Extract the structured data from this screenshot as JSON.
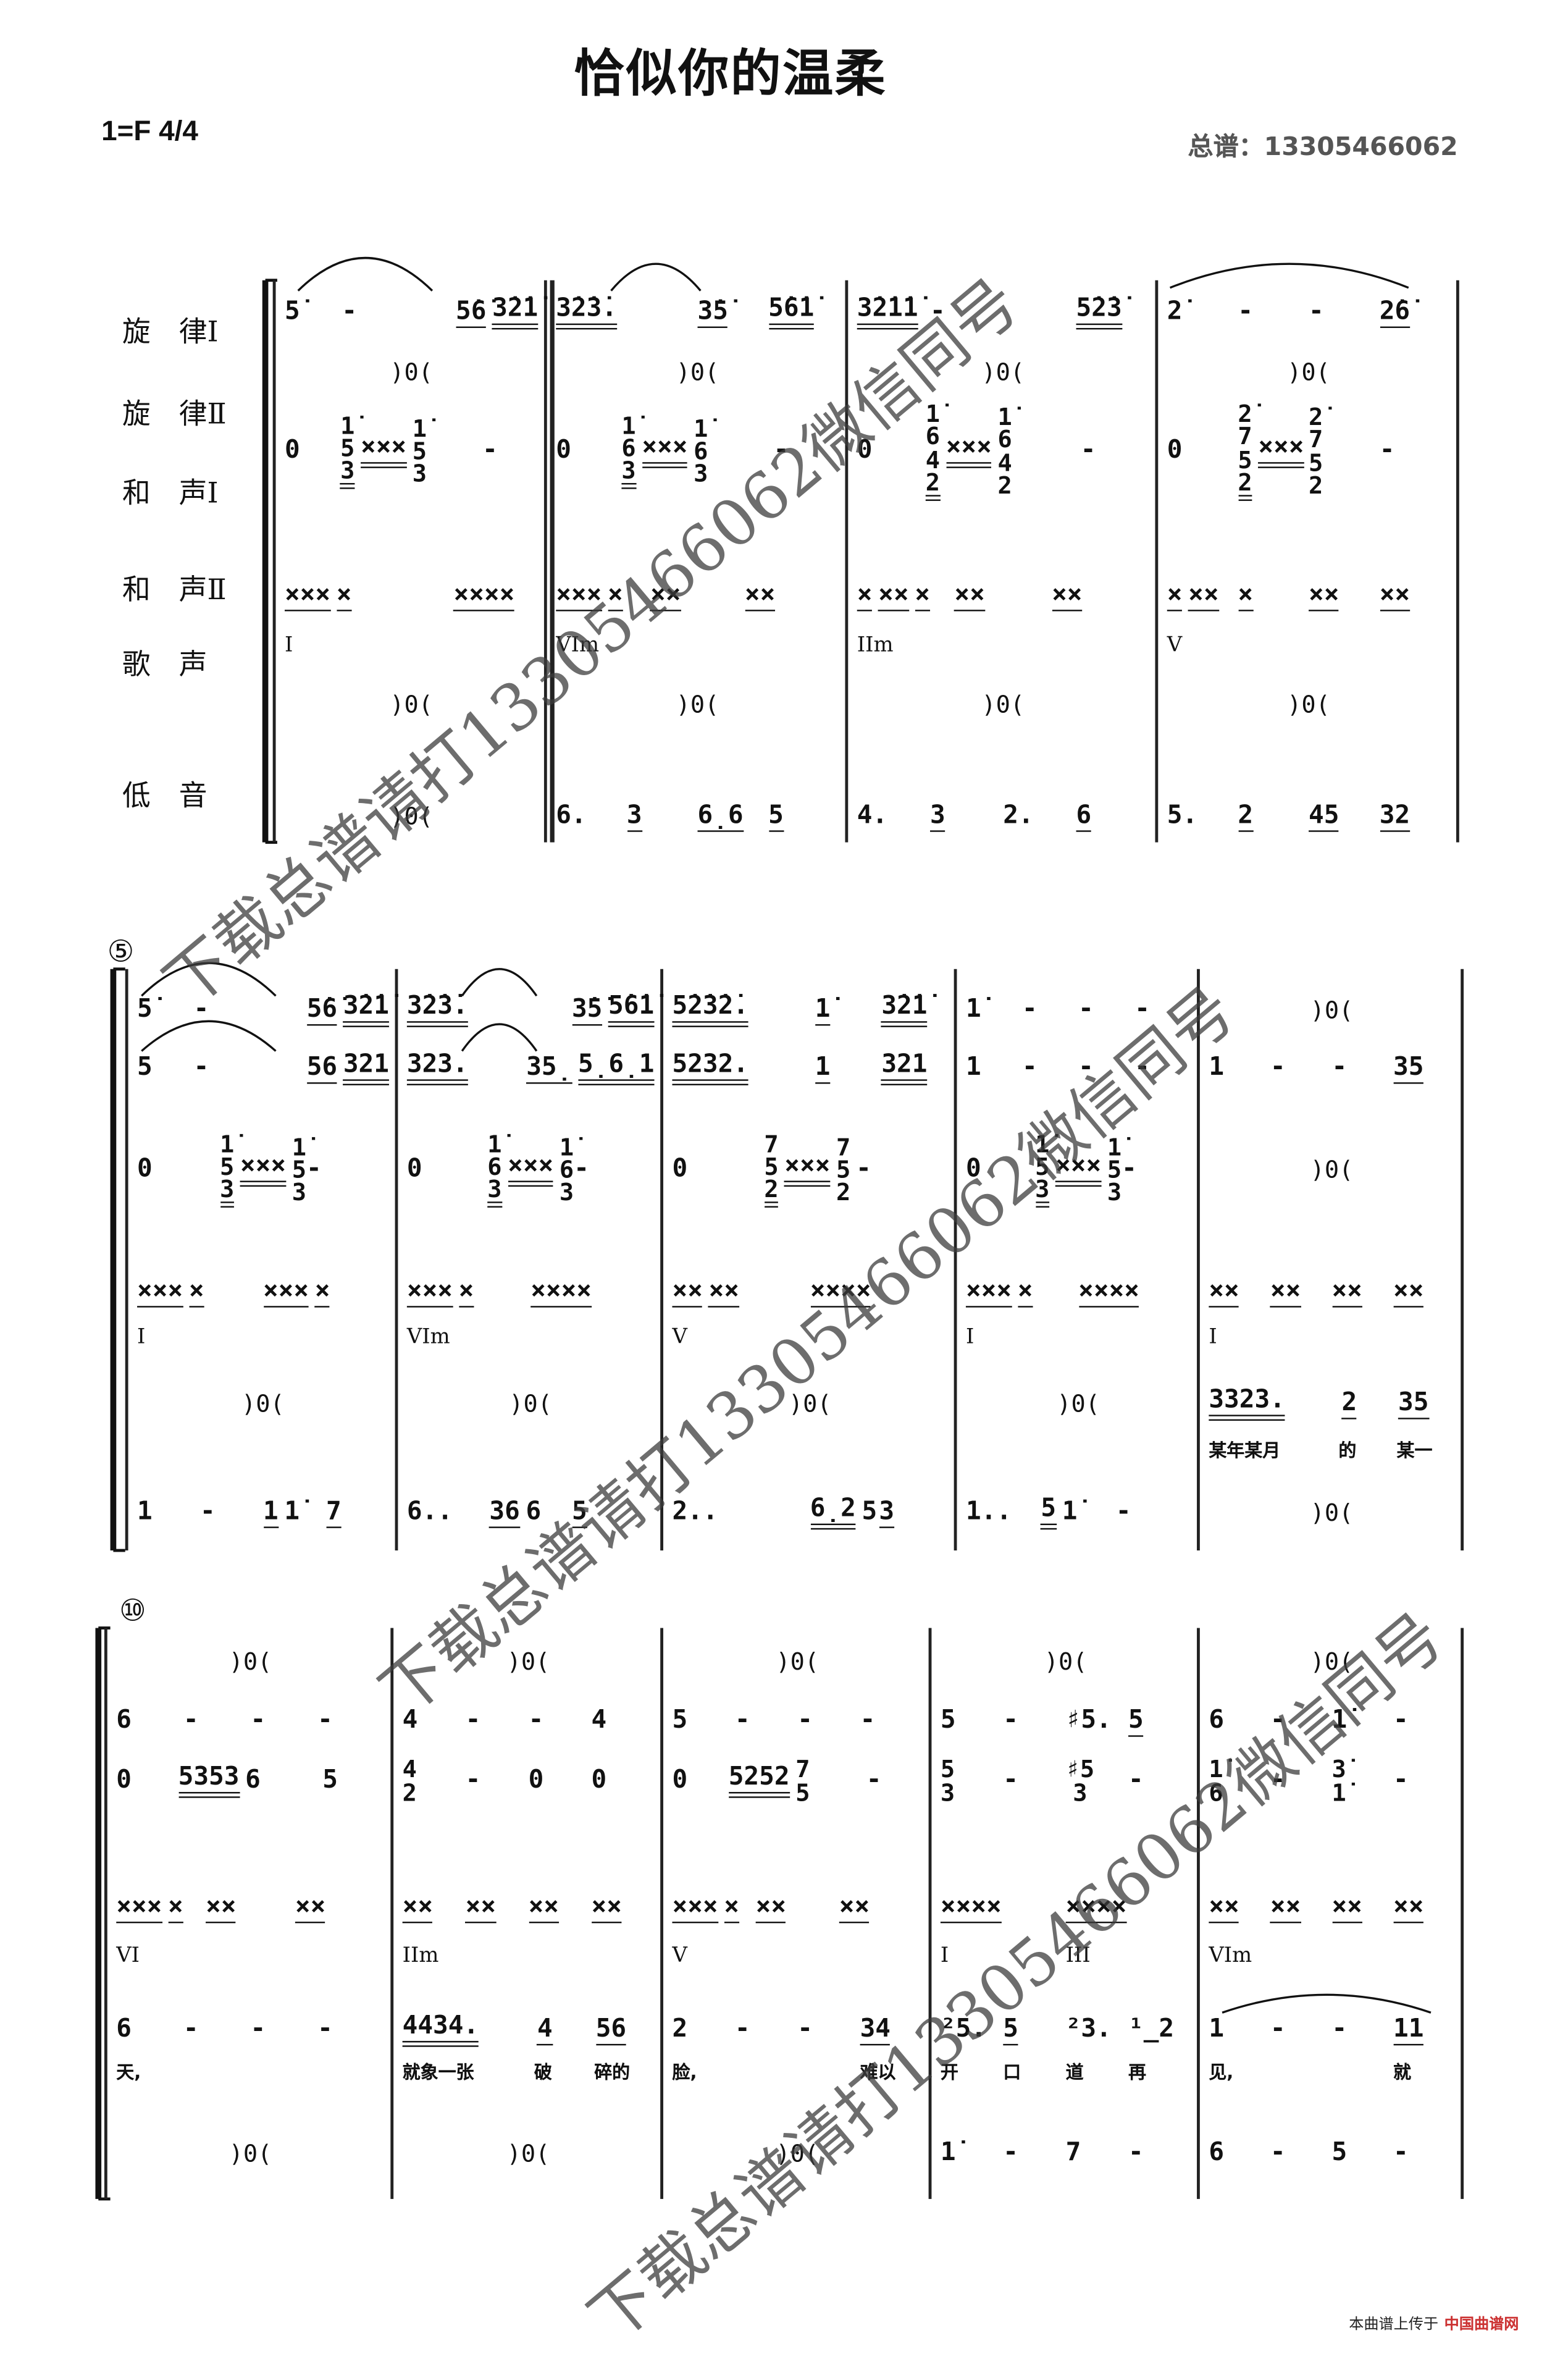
{
  "title": "恰似你的温柔",
  "key_signature": "1=F  4/4",
  "score_label": "总谱：13305466062",
  "part_labels": [
    "旋　律Ⅰ",
    "旋　律Ⅱ",
    "和　声Ⅰ",
    "和　声Ⅱ",
    "歌　声",
    "低　音"
  ],
  "measure_markers": [
    "⑤",
    "⑩"
  ],
  "watermark": "下载总谱请打13305466062微信同号",
  "footer": {
    "text": "本曲谱上传于",
    "logo": "中国曲谱网"
  },
  "systems": [
    {
      "measures": [
        {
          "mel1": [
            "5̇",
            "-",
            "",
            "_5̇6̇ =3̇2̇1̇"
          ],
          "mel2": [
            "",
            ")0(",
            ""
          ],
          "harm1": [
            "0",
            "=1̇/5/3 =××× 1̇/5/3",
            "",
            "-"
          ],
          "harm2": [
            "_××× _×",
            "",
            "_××××"
          ],
          "chord": [
            "I"
          ],
          "voc": [
            "",
            ")0(",
            ""
          ],
          "bass": [
            "",
            ")0(",
            ""
          ]
        },
        {
          "mel1": [
            "=3̇2̇3̇.",
            "",
            "_3̇5̇",
            "=5̇6̇1̇"
          ],
          "mel2": [
            "",
            ")0(",
            ""
          ],
          "harm1": [
            "0",
            "=1̇/6/3 =××× 1̇/6/3",
            "",
            "-"
          ],
          "harm2": [
            "_××× _×",
            "_××",
            "_××"
          ],
          "chord": [
            "VIm"
          ],
          "voc": [
            "",
            ")0(",
            ""
          ],
          "bass": [
            "6.",
            "_3",
            "_6̣6",
            "_5"
          ]
        },
        {
          "mel1": [
            "=3̇2̇1̇1̇",
            "-",
            "",
            "=5̇2̇3̇"
          ],
          "mel2": [
            "",
            ")0(",
            ""
          ],
          "harm1": [
            "0",
            "=1̇/6/4/2 =××× 1̇/6/4/2",
            "",
            "-"
          ],
          "harm2": [
            "_× _×× _×",
            "_××",
            "_××"
          ],
          "chord": [
            "IIm"
          ],
          "voc": [
            "",
            ")0(",
            ""
          ],
          "bass": [
            "4.",
            "_3",
            "2.",
            "_6"
          ]
        },
        {
          "mel1": [
            "2̇",
            "-",
            "-",
            "_2̇6̇"
          ],
          "mel2": [
            "",
            ")0(",
            ""
          ],
          "harm1": [
            "0",
            "=2̇/7/5/2 =×××",
            "2̇/7/5/2",
            "-"
          ],
          "harm2": [
            "_× _××",
            "_×",
            "_××",
            "_××"
          ],
          "chord": [
            "V"
          ],
          "voc": [
            "",
            ")0(",
            ""
          ],
          "bass": [
            "5.",
            "_2",
            "_45",
            "_32"
          ]
        }
      ]
    },
    {
      "measures": [
        {
          "mel1": [
            "5̇",
            "-",
            "",
            "_5̇6̇ =3̇2̇1̇"
          ],
          "mel2": [
            "5",
            "-",
            "",
            "_56 =321"
          ],
          "harm1": [
            "0",
            "=1̇/5/3 =××× 1̇/5/3",
            "-"
          ],
          "harm2": [
            "_××× _×",
            "_××× _×"
          ],
          "chord": [
            "I"
          ],
          "voc": [
            "",
            ")0(",
            ""
          ],
          "bass": [
            "1",
            "-",
            "_1 1̇",
            "_7"
          ]
        },
        {
          "mel1": [
            "=3̇2̇3̇.",
            "",
            "_3̇5̇ =5̇6̇1̇"
          ],
          "mel2": [
            "=323.",
            "",
            "_35̣ =5̣6̣1"
          ],
          "harm1": [
            "0",
            "=1̇/6/3 =××× 1̇/6/3",
            "-"
          ],
          "harm2": [
            "_××× _×",
            "_××××"
          ],
          "chord": [
            "VIm"
          ],
          "voc": [
            "",
            ")0(",
            ""
          ],
          "bass": [
            "6..",
            "_36 6",
            "_5"
          ]
        },
        {
          "mel1": [
            "=5̇2̇3̇2̇.",
            "",
            "_1̇",
            "=3̇2̇1̇"
          ],
          "mel2": [
            "=5232.",
            "",
            "_1",
            "=321"
          ],
          "harm1": [
            "0",
            "=7/5/2 =××× 7/5/2",
            "-"
          ],
          "harm2": [
            "_×× _××",
            "_××××"
          ],
          "chord": [
            "V"
          ],
          "voc": [
            "",
            ")0(",
            ""
          ],
          "bass": [
            "2..",
            "",
            "=6̣2 5",
            "_3"
          ]
        },
        {
          "mel1": [
            "1̇",
            "-",
            "-",
            "-"
          ],
          "mel2": [
            "1",
            "-",
            "-",
            "-"
          ],
          "harm1": [
            "0",
            "=1̇/5/3 =××× 1̇/5/3",
            "-"
          ],
          "harm2": [
            "_××× _×",
            "_××××"
          ],
          "chord": [
            "I"
          ],
          "voc": [
            "",
            ")0(",
            ""
          ],
          "bass": [
            "1..",
            "=5 1̇",
            "-"
          ]
        },
        {
          "mel1": [
            "",
            ")0(",
            ""
          ],
          "mel2": [
            "1",
            "-",
            "-",
            "_35"
          ],
          "harm1": [
            "",
            ")0(",
            ""
          ],
          "harm2": [
            "_××",
            "_××",
            "_××",
            "_××"
          ],
          "chord": [
            "I"
          ],
          "voc": [
            "=3323.",
            "",
            "_2",
            "_35"
          ],
          "lyr": [
            "某年某月",
            "",
            "的",
            "某一"
          ],
          "bass": [
            "",
            ")0(",
            ""
          ]
        }
      ]
    },
    {
      "measures": [
        {
          "mel1": [
            "",
            ")0(",
            ""
          ],
          "mel2": [
            "6",
            "-",
            "-",
            "-"
          ],
          "harm1": [
            "0",
            "=5353 6",
            "",
            "5"
          ],
          "harm2": [
            "_××× _×",
            "_××",
            "_××"
          ],
          "chord": [
            "VI"
          ],
          "voc": [
            "6",
            "-",
            "-",
            "-"
          ],
          "lyr": [
            "天,"
          ],
          "bass": [
            "",
            ")0(",
            ""
          ]
        },
        {
          "mel1": [
            "",
            ")0(",
            ""
          ],
          "mel2": [
            "4",
            "-",
            "-",
            "4"
          ],
          "harm1": [
            "4/2",
            "-",
            "0",
            "0"
          ],
          "harm2": [
            "_××",
            "_××",
            "_××",
            "_××"
          ],
          "chord": [
            "IIm"
          ],
          "voc": [
            "=4434.",
            "",
            "_4",
            "_56"
          ],
          "lyr": [
            "就象一张",
            "",
            "破",
            "碎的"
          ],
          "bass": [
            "",
            ")0(",
            ""
          ]
        },
        {
          "mel1": [
            "",
            ")0(",
            ""
          ],
          "mel2": [
            "5",
            "-",
            "-",
            "-"
          ],
          "harm1": [
            "0",
            "=5252 7/5",
            "",
            "-"
          ],
          "harm2": [
            "_××× _×",
            "_××",
            "_××"
          ],
          "chord": [
            "V"
          ],
          "voc": [
            "2",
            "-",
            "-",
            "_34"
          ],
          "lyr": [
            "脸,",
            "",
            "",
            "难以"
          ],
          "bass": [
            "",
            ")0(",
            ""
          ]
        },
        {
          "mel1": [
            "",
            ")0(",
            ""
          ],
          "mel2": [
            "5",
            "-",
            "♯5.",
            "_5"
          ],
          "harm1": [
            "5/3",
            "-",
            "♯5/3",
            "-"
          ],
          "harm2": [
            "_××××",
            "_××××"
          ],
          "chord": [
            "I",
            "III"
          ],
          "voc": [
            "²5.",
            "_5",
            "²3.",
            "¹_2"
          ],
          "lyr": [
            "开",
            "口",
            "道",
            "再"
          ],
          "bass": [
            "1̇",
            "-",
            "7",
            "-"
          ]
        },
        {
          "mel1": [
            "",
            ")0(",
            ""
          ],
          "mel2": [
            "6",
            "-",
            "1̇",
            "-"
          ],
          "harm1": [
            "1̇/6",
            "-",
            "3̇/1̇",
            "-"
          ],
          "harm2": [
            "_××",
            "_××",
            "_××",
            "_××"
          ],
          "chord": [
            "VIm"
          ],
          "voc": [
            "1",
            "-",
            "-",
            "_11"
          ],
          "lyr": [
            "见,",
            "",
            "",
            "就"
          ],
          "bass": [
            "6",
            "-",
            "5",
            "-"
          ]
        }
      ]
    }
  ]
}
